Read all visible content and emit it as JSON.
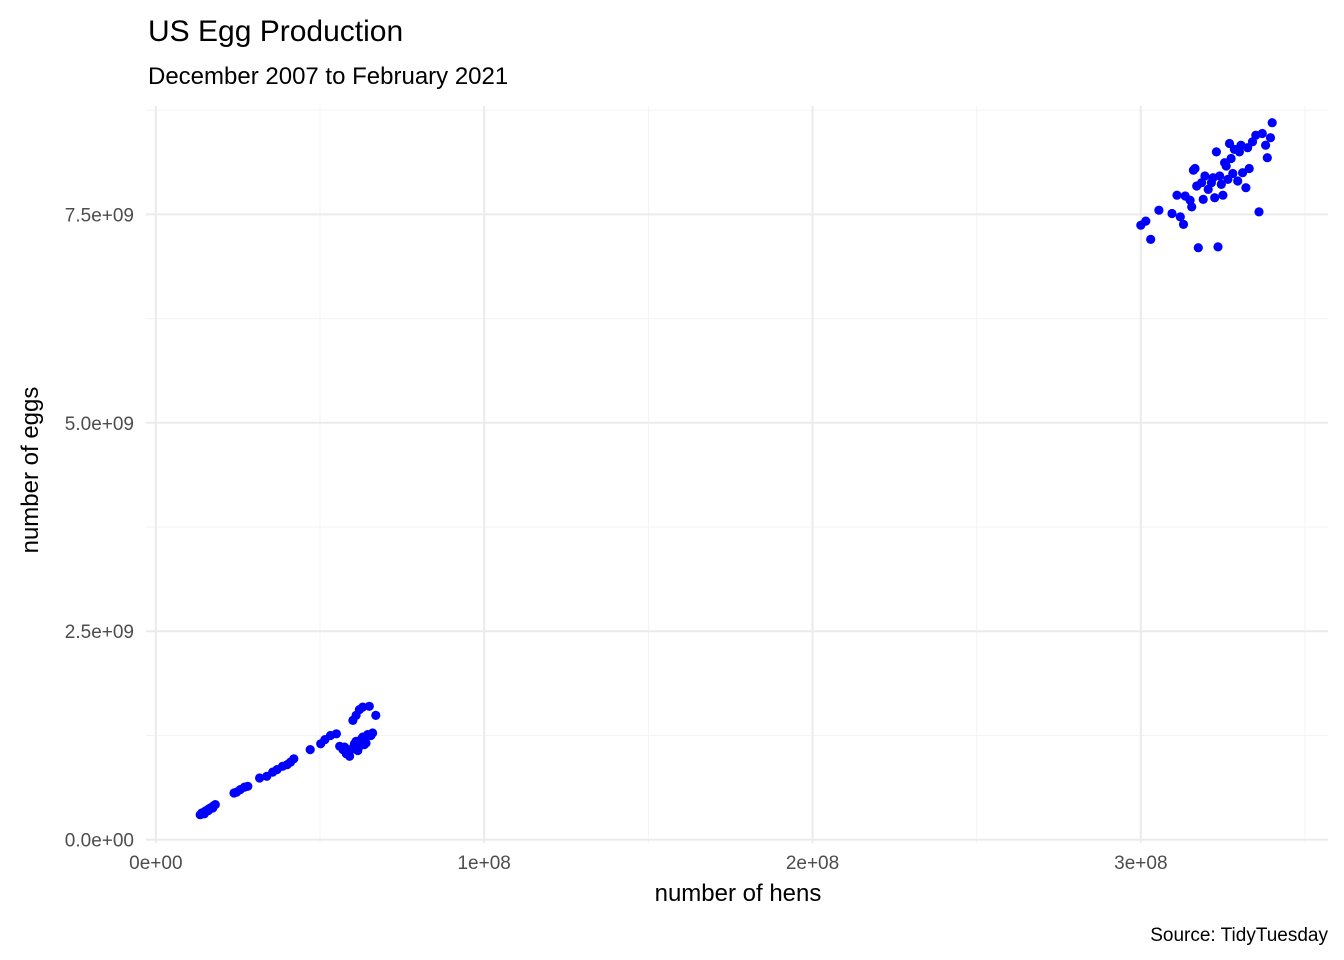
{
  "chart_data": {
    "type": "scatter",
    "title": "US Egg Production",
    "subtitle": "December 2007 to February 2021",
    "xlabel": "number of hens",
    "ylabel": "number of eggs",
    "caption": "Source: TidyTuesday",
    "xlim": [
      -3000000,
      357000000
    ],
    "ylim": [
      -40000000,
      8800000000
    ],
    "x_ticks": [
      {
        "value": 0,
        "label": "0e+00"
      },
      {
        "value": 100000000,
        "label": "1e+08"
      },
      {
        "value": 200000000,
        "label": "2e+08"
      },
      {
        "value": 300000000,
        "label": "3e+08"
      }
    ],
    "y_ticks": [
      {
        "value": 0,
        "label": "0.0e+00"
      },
      {
        "value": 2500000000,
        "label": "2.5e+09"
      },
      {
        "value": 5000000000,
        "label": "5.0e+09"
      },
      {
        "value": 7500000000,
        "label": "7.5e+09"
      }
    ],
    "x_minor": [
      50000000,
      150000000,
      250000000,
      350000000
    ],
    "y_minor": [
      1250000000,
      3750000000,
      6250000000,
      8750000000
    ],
    "grid": true,
    "point_color": "#0000ff",
    "series": [
      {
        "values": [
          [
            13500000,
            300000000
          ],
          [
            14000000,
            320000000
          ],
          [
            14600000,
            330000000
          ],
          [
            15200000,
            345000000
          ],
          [
            15800000,
            360000000
          ],
          [
            16400000,
            375000000
          ],
          [
            17000000,
            390000000
          ],
          [
            17600000,
            405000000
          ],
          [
            18100000,
            420000000
          ],
          [
            14800000,
            310000000
          ],
          [
            16000000,
            350000000
          ],
          [
            17300000,
            380000000
          ],
          [
            23800000,
            560000000
          ],
          [
            24600000,
            570000000
          ],
          [
            25700000,
            600000000
          ],
          [
            27000000,
            630000000
          ],
          [
            28000000,
            640000000
          ],
          [
            31600000,
            740000000
          ],
          [
            33800000,
            760000000
          ],
          [
            35600000,
            810000000
          ],
          [
            36900000,
            840000000
          ],
          [
            38600000,
            880000000
          ],
          [
            40000000,
            900000000
          ],
          [
            41000000,
            930000000
          ],
          [
            42000000,
            970000000
          ],
          [
            47000000,
            1080000000
          ],
          [
            50200000,
            1150000000
          ],
          [
            51500000,
            1200000000
          ],
          [
            53200000,
            1250000000
          ],
          [
            55000000,
            1270000000
          ],
          [
            56000000,
            1120000000
          ],
          [
            57000000,
            1080000000
          ],
          [
            58000000,
            1030000000
          ],
          [
            59000000,
            1060000000
          ],
          [
            60000000,
            1100000000
          ],
          [
            60500000,
            1150000000
          ],
          [
            61000000,
            1180000000
          ],
          [
            61500000,
            1070000000
          ],
          [
            62000000,
            1120000000
          ],
          [
            62500000,
            1200000000
          ],
          [
            63000000,
            1230000000
          ],
          [
            63500000,
            1140000000
          ],
          [
            64000000,
            1160000000
          ],
          [
            64500000,
            1260000000
          ],
          [
            65500000,
            1250000000
          ],
          [
            66000000,
            1280000000
          ],
          [
            60000000,
            1430000000
          ],
          [
            61000000,
            1490000000
          ],
          [
            62000000,
            1560000000
          ],
          [
            63000000,
            1590000000
          ],
          [
            65000000,
            1600000000
          ],
          [
            67000000,
            1490000000
          ],
          [
            59000000,
            1000000000
          ],
          [
            57500000,
            1110000000
          ]
        ]
      },
      {
        "values": [
          [
            300000000,
            7370000000
          ],
          [
            301500000,
            7420000000
          ],
          [
            303000000,
            7200000000
          ],
          [
            305500000,
            7550000000
          ],
          [
            309500000,
            7510000000
          ],
          [
            311000000,
            7730000000
          ],
          [
            312000000,
            7470000000
          ],
          [
            313000000,
            7380000000
          ],
          [
            313500000,
            7720000000
          ],
          [
            315000000,
            7670000000
          ],
          [
            315500000,
            7590000000
          ],
          [
            316000000,
            8030000000
          ],
          [
            316500000,
            8050000000
          ],
          [
            317000000,
            7840000000
          ],
          [
            317500000,
            7100000000
          ],
          [
            318500000,
            7880000000
          ],
          [
            319000000,
            7680000000
          ],
          [
            319500000,
            7960000000
          ],
          [
            320500000,
            7800000000
          ],
          [
            321500000,
            7880000000
          ],
          [
            322000000,
            7940000000
          ],
          [
            322500000,
            7700000000
          ],
          [
            323000000,
            8250000000
          ],
          [
            323500000,
            7110000000
          ],
          [
            324000000,
            7960000000
          ],
          [
            324500000,
            7860000000
          ],
          [
            325000000,
            7730000000
          ],
          [
            325500000,
            8120000000
          ],
          [
            326000000,
            8080000000
          ],
          [
            326500000,
            7920000000
          ],
          [
            327000000,
            8350000000
          ],
          [
            327500000,
            8170000000
          ],
          [
            328000000,
            7990000000
          ],
          [
            328500000,
            8280000000
          ],
          [
            329500000,
            7900000000
          ],
          [
            330000000,
            8250000000
          ],
          [
            330500000,
            8330000000
          ],
          [
            331000000,
            8000000000
          ],
          [
            332000000,
            7820000000
          ],
          [
            332500000,
            8300000000
          ],
          [
            333000000,
            8050000000
          ],
          [
            334000000,
            8370000000
          ],
          [
            335000000,
            8450000000
          ],
          [
            336000000,
            7530000000
          ],
          [
            337000000,
            8470000000
          ],
          [
            338000000,
            8330000000
          ],
          [
            338500000,
            8180000000
          ],
          [
            339500000,
            8420000000
          ],
          [
            340000000,
            8600000000
          ]
        ]
      }
    ]
  }
}
